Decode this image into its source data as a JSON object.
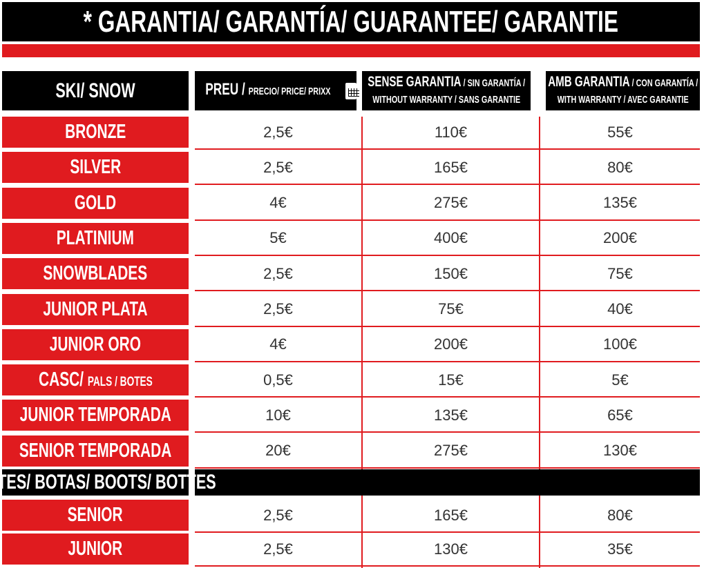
{
  "title": "* GARANTIA/ GARANTÍA/ GUARANTEE/ GARANTIE",
  "colors": {
    "red": "#e01b1f",
    "black": "#000000"
  },
  "headers": {
    "category": "SKI/ SNOW",
    "price_main": "PREU /",
    "price_sub": "PRECIO/ PRICE/ PRIXX",
    "price_icon": "calendar-icon",
    "no_warranty_main": "SENSE GARANTIA",
    "no_warranty_sub1": " / SIN GARANTÍA /",
    "no_warranty_sub2": "WITHOUT WARRANTY / SANS GARANTIE",
    "warranty_main": "AMB GARANTIA",
    "warranty_sub1": " / CON GARANTÍA /",
    "warranty_sub2": "WITH WARRANTY / AVEC GARANTIE"
  },
  "ski_rows": [
    {
      "label": "BRONZE",
      "price": "2,5€",
      "no_warranty": "110€",
      "warranty": "55€"
    },
    {
      "label": "SILVER",
      "price": "2,5€",
      "no_warranty": "165€",
      "warranty": "80€"
    },
    {
      "label": "GOLD",
      "price": "4€",
      "no_warranty": "275€",
      "warranty": "135€"
    },
    {
      "label": "PLATINIUM",
      "price": "5€",
      "no_warranty": "400€",
      "warranty": "200€"
    },
    {
      "label": "SNOWBLADES",
      "price": "2,5€",
      "no_warranty": "150€",
      "warranty": "75€"
    },
    {
      "label": "JUNIOR PLATA",
      "price": "2,5€",
      "no_warranty": "75€",
      "warranty": "40€"
    },
    {
      "label": "JUNIOR ORO",
      "price": "4€",
      "no_warranty": "200€",
      "warranty": "100€"
    },
    {
      "label": "CASC/",
      "label_sub": "PALS / BOTES",
      "price": "0,5€",
      "no_warranty": "15€",
      "warranty": "5€"
    },
    {
      "label": "JUNIOR TEMPORADA",
      "price": "10€",
      "no_warranty": "135€",
      "warranty": "65€"
    },
    {
      "label": "SENIOR TEMPORADA",
      "price": "20€",
      "no_warranty": "275€",
      "warranty": "130€"
    }
  ],
  "boots_header": "BOTES/ BOTAS/ BOOTS/ BOTTES",
  "boots_rows": [
    {
      "label": "SENIOR",
      "price": "2,5€",
      "no_warranty": "165€",
      "warranty": "80€"
    },
    {
      "label": "JUNIOR",
      "price": "2,5€",
      "no_warranty": "130€",
      "warranty": "35€"
    }
  ]
}
